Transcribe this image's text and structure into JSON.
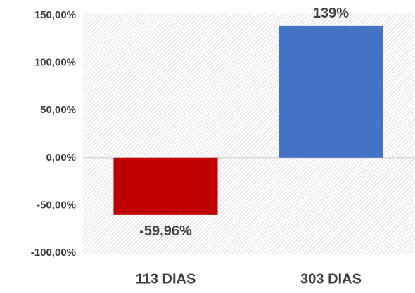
{
  "chart_data": {
    "type": "bar",
    "categories": [
      "113 DIAS",
      "303 DIAS"
    ],
    "values": [
      -59.96,
      139
    ],
    "value_labels": [
      "-59,96%",
      "139%"
    ],
    "colors": [
      "#c00000",
      "#4472c4"
    ],
    "ylim": [
      -100,
      150
    ],
    "yticks": [
      {
        "value": -100,
        "label": "-100,00%"
      },
      {
        "value": -50,
        "label": "-50,00%"
      },
      {
        "value": 0,
        "label": "0,00%"
      },
      {
        "value": 50,
        "label": "50,00%"
      },
      {
        "value": 100,
        "label": "100,00%"
      },
      {
        "value": 150,
        "label": "150,00%"
      }
    ]
  }
}
